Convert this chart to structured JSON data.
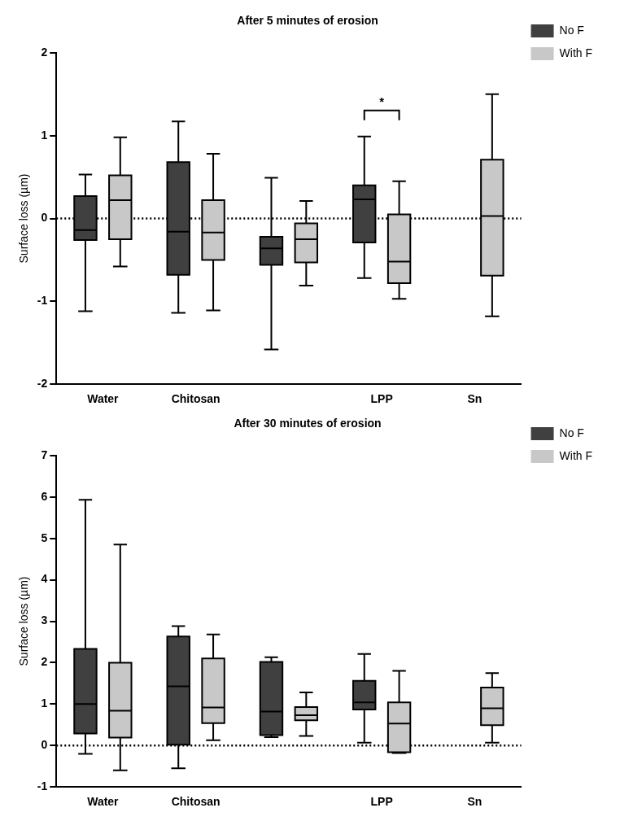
{
  "chart_data": [
    {
      "type": "box",
      "title": "After 5 minutes of erosion",
      "ylabel": "Surface loss (µm)",
      "categories": [
        "Water",
        "Chitosan",
        null,
        "LPP",
        "Sn"
      ],
      "ylim": [
        -2,
        2
      ],
      "yticks": [
        -2,
        -1,
        0,
        1,
        2
      ],
      "grid": false,
      "legend": "top right",
      "ref_lines": [
        {
          "axis": "y",
          "value": 0,
          "line_style": "dotted",
          "color": "#000000"
        }
      ],
      "annotations": [
        "*"
      ],
      "series": [
        {
          "name": "No F",
          "color": "#404040",
          "boxes": [
            {
              "low": -1.12,
              "q1": -0.26,
              "median": -0.14,
              "q3": 0.27,
              "high": 0.53
            },
            {
              "low": -1.14,
              "q1": -0.68,
              "median": -0.16,
              "q3": 0.68,
              "high": 1.17
            },
            {
              "low": -1.58,
              "q1": -0.56,
              "median": -0.36,
              "q3": -0.22,
              "high": 0.49
            },
            {
              "low": -0.72,
              "q1": -0.29,
              "median": 0.23,
              "q3": 0.4,
              "high": 0.99
            },
            null
          ]
        },
        {
          "name": "With F",
          "color": "#c8c8c8",
          "boxes": [
            {
              "low": -0.58,
              "q1": -0.25,
              "median": 0.22,
              "q3": 0.52,
              "high": 0.98
            },
            {
              "low": -1.11,
              "q1": -0.5,
              "median": -0.17,
              "q3": 0.22,
              "high": 0.78
            },
            {
              "low": -0.81,
              "q1": -0.53,
              "median": -0.25,
              "q3": -0.06,
              "high": 0.21
            },
            {
              "low": -0.97,
              "q1": -0.78,
              "median": -0.52,
              "q3": 0.05,
              "high": 0.45
            },
            {
              "low": -1.18,
              "q1": -0.69,
              "median": 0.03,
              "q3": 0.71,
              "high": 1.5
            }
          ]
        }
      ]
    },
    {
      "type": "box",
      "title": "After 30 minutes of erosion",
      "ylabel": "Surface loss (µm)",
      "categories": [
        "Water",
        "Chitosan",
        null,
        "LPP",
        "Sn"
      ],
      "ylim": [
        -1,
        7
      ],
      "yticks": [
        -1,
        0,
        1,
        2,
        3,
        4,
        5,
        6,
        7
      ],
      "grid": false,
      "legend": "top right",
      "ref_lines": [
        {
          "axis": "y",
          "value": 0,
          "line_style": "dotted",
          "color": "#000000"
        }
      ],
      "series": [
        {
          "name": "No F",
          "color": "#404040",
          "boxes": [
            {
              "low": -0.2,
              "q1": 0.29,
              "median": 1.0,
              "q3": 2.33,
              "high": 5.93
            },
            {
              "low": -0.55,
              "q1": 0.02,
              "median": 1.43,
              "q3": 2.63,
              "high": 2.88
            },
            {
              "low": 0.2,
              "q1": 0.25,
              "median": 0.82,
              "q3": 2.02,
              "high": 2.13
            },
            {
              "low": 0.07,
              "q1": 0.87,
              "median": 1.04,
              "q3": 1.56,
              "high": 2.21
            },
            null
          ]
        },
        {
          "name": "With F",
          "color": "#c8c8c8",
          "boxes": [
            {
              "low": -0.6,
              "q1": 0.19,
              "median": 0.84,
              "q3": 2.0,
              "high": 4.85
            },
            {
              "low": 0.13,
              "q1": 0.54,
              "median": 0.92,
              "q3": 2.1,
              "high": 2.68
            },
            {
              "low": 0.23,
              "q1": 0.61,
              "median": 0.73,
              "q3": 0.93,
              "high": 1.28
            },
            {
              "low": -0.18,
              "q1": -0.16,
              "median": 0.53,
              "q3": 1.04,
              "high": 1.8
            },
            {
              "low": 0.07,
              "q1": 0.49,
              "median": 0.9,
              "q3": 1.4,
              "high": 1.75
            }
          ]
        }
      ]
    }
  ]
}
